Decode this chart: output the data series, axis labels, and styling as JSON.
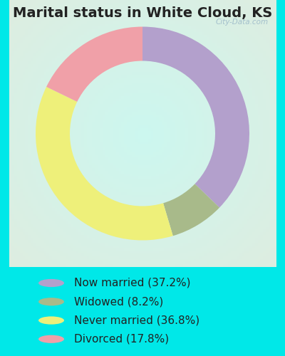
{
  "title": "Marital status in White Cloud, KS",
  "values": [
    37.2,
    8.2,
    36.8,
    17.8
  ],
  "colors": [
    "#b3a0cc",
    "#a8ba8a",
    "#eef07a",
    "#f0a0a8"
  ],
  "legend_labels": [
    "Now married (37.2%)",
    "Widowed (8.2%)",
    "Never married (36.8%)",
    "Divorced (17.8%)"
  ],
  "bg_color": "#00e8e8",
  "chart_bg_outer": "#d8f0e0",
  "chart_bg_inner": "#e8f8f0",
  "watermark": "City-Data.com",
  "donut_width": 0.32,
  "start_angle": 90,
  "title_fontsize": 14,
  "legend_fontsize": 11
}
